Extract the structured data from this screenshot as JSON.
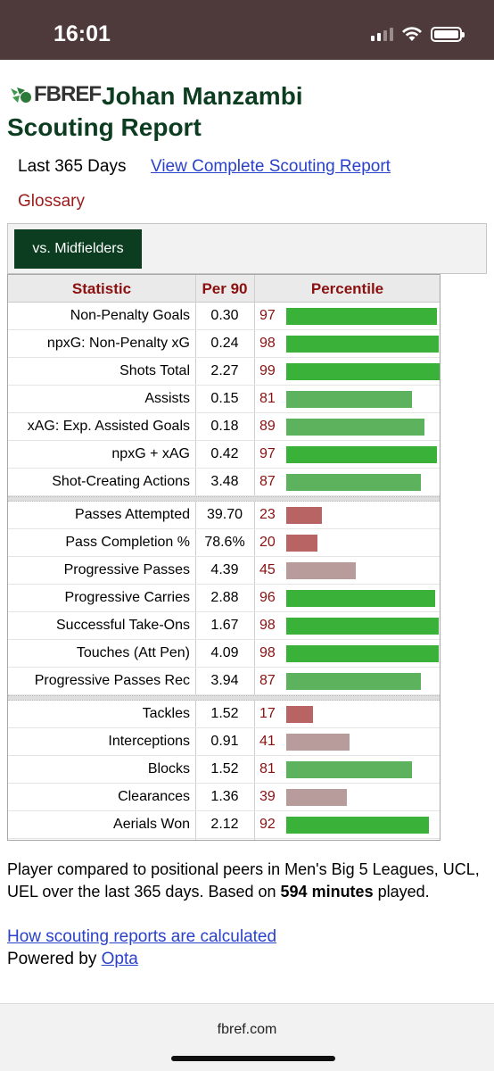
{
  "status_bar": {
    "time": "16:01"
  },
  "header": {
    "logo_text": "FBREF",
    "title_line1": "Johan Manzambi",
    "title_line2": "Scouting Report",
    "period": "Last 365 Days",
    "full_report_link": "View Complete Scouting Report",
    "glossary": "Glossary"
  },
  "tabs": [
    {
      "label": "vs. Midfielders",
      "active": true
    }
  ],
  "table": {
    "headers": {
      "statistic": "Statistic",
      "per90": "Per 90",
      "percentile": "Percentile"
    },
    "groups": [
      [
        {
          "stat": "Non-Penalty Goals",
          "per90": "0.30",
          "pct": "97"
        },
        {
          "stat": "npxG: Non-Penalty xG",
          "per90": "0.24",
          "pct": "98"
        },
        {
          "stat": "Shots Total",
          "per90": "2.27",
          "pct": "99"
        },
        {
          "stat": "Assists",
          "per90": "0.15",
          "pct": "81"
        },
        {
          "stat": "xAG: Exp. Assisted Goals",
          "per90": "0.18",
          "pct": "89"
        },
        {
          "stat": "npxG + xAG",
          "per90": "0.42",
          "pct": "97"
        },
        {
          "stat": "Shot-Creating Actions",
          "per90": "3.48",
          "pct": "87"
        }
      ],
      [
        {
          "stat": "Passes Attempted",
          "per90": "39.70",
          "pct": "23"
        },
        {
          "stat": "Pass Completion %",
          "per90": "78.6%",
          "pct": "20"
        },
        {
          "stat": "Progressive Passes",
          "per90": "4.39",
          "pct": "45"
        },
        {
          "stat": "Progressive Carries",
          "per90": "2.88",
          "pct": "96"
        },
        {
          "stat": "Successful Take-Ons",
          "per90": "1.67",
          "pct": "98"
        },
        {
          "stat": "Touches (Att Pen)",
          "per90": "4.09",
          "pct": "98"
        },
        {
          "stat": "Progressive Passes Rec",
          "per90": "3.94",
          "pct": "87"
        }
      ],
      [
        {
          "stat": "Tackles",
          "per90": "1.52",
          "pct": "17"
        },
        {
          "stat": "Interceptions",
          "per90": "0.91",
          "pct": "41"
        },
        {
          "stat": "Blocks",
          "per90": "1.52",
          "pct": "81"
        },
        {
          "stat": "Clearances",
          "per90": "1.36",
          "pct": "39"
        },
        {
          "stat": "Aerials Won",
          "per90": "2.12",
          "pct": "92"
        }
      ]
    ],
    "bar_colors": {
      "elite": "#3ab23a",
      "good": "#5db35d",
      "average": "#b89c9c",
      "poor": "#b86464"
    }
  },
  "footnote": {
    "text_before": "Player compared to positional peers in Men's Big 5 Leagues, UCL, UEL over the last 365 days. Based on ",
    "minutes_bold": "594 minutes",
    "text_after": " played.",
    "calc_link": "How scouting reports are calculated",
    "powered_by": "Powered by ",
    "powered_link": "Opta"
  },
  "browser": {
    "url": "fbref.com"
  }
}
